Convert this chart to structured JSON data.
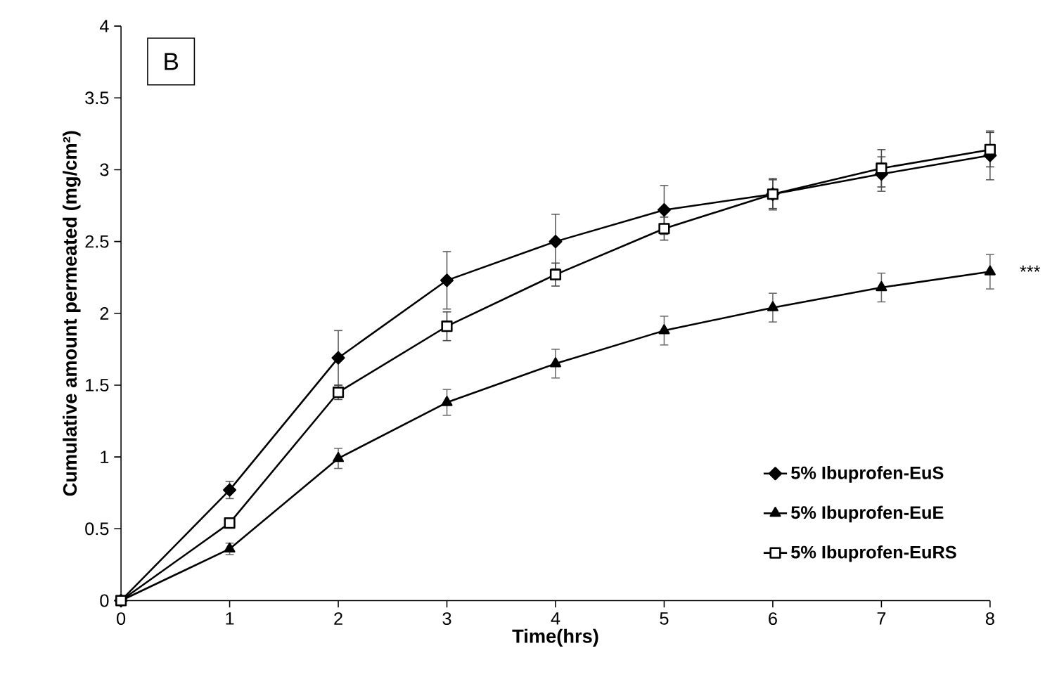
{
  "chart_data": {
    "type": "line",
    "xlabel": "Time(hrs)",
    "ylabel": "Cumulative amount permeated (mg/cm²)",
    "x": [
      0,
      1,
      2,
      3,
      4,
      5,
      6,
      7,
      8
    ],
    "xlim": [
      0,
      8
    ],
    "xticks": [
      0,
      1,
      2,
      3,
      4,
      5,
      6,
      7,
      8
    ],
    "ylim": [
      0,
      4
    ],
    "yticks": [
      0,
      0.5,
      1,
      1.5,
      2,
      2.5,
      3,
      3.5,
      4
    ],
    "grid": false,
    "legend": "right",
    "series": [
      {
        "name": "5% Ibuprofen-EuS",
        "color": "#000000",
        "marker": "diamond",
        "values": [
          0,
          0.77,
          1.69,
          2.23,
          2.5,
          2.72,
          2.83,
          2.97,
          3.1
        ],
        "errors": [
          null,
          0.06,
          0.19,
          0.2,
          0.19,
          0.17,
          0.11,
          0.12,
          0.17
        ]
      },
      {
        "name": "5% Ibuprofen-EuE",
        "color": "#000000",
        "marker": "triangle",
        "values": [
          0,
          0.36,
          0.99,
          1.38,
          1.65,
          1.88,
          2.04,
          2.18,
          2.29
        ],
        "errors": [
          null,
          0.04,
          0.07,
          0.09,
          0.1,
          0.1,
          0.1,
          0.1,
          0.12
        ]
      },
      {
        "name": "5% Ibuprofen-EuRS",
        "color": "#000000",
        "marker": "square",
        "values": [
          0,
          0.54,
          1.45,
          1.91,
          2.27,
          2.59,
          2.83,
          3.01,
          3.14
        ],
        "errors": [
          null,
          0.03,
          0.05,
          0.1,
          0.08,
          0.08,
          0.1,
          0.13,
          0.12
        ]
      }
    ],
    "annotations": [
      "B",
      {
        "text": "***",
        "x": 8,
        "y": 2.29
      }
    ]
  }
}
